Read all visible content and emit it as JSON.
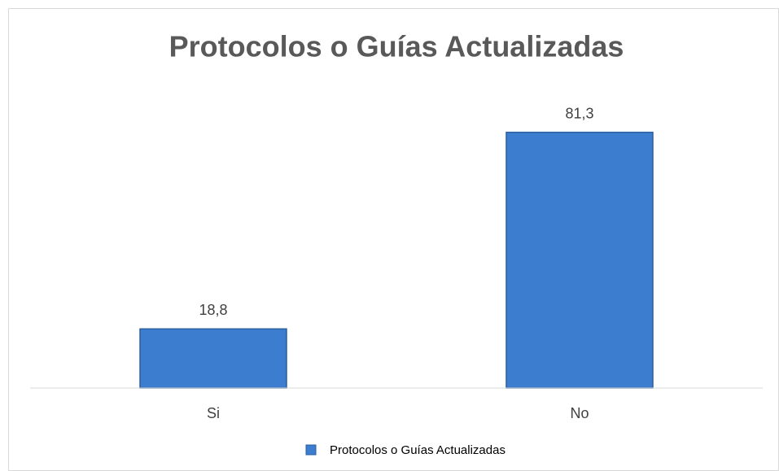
{
  "chart_data": {
    "type": "bar",
    "title": "Protocolos o Guías Actualizadas",
    "categories": [
      "Si",
      "No"
    ],
    "series": [
      {
        "name": "Protocolos o Guías Actualizadas",
        "color": "#3c7dd0",
        "values": [
          18.8,
          81.3
        ],
        "value_labels": [
          "18,8",
          "81,3"
        ]
      }
    ],
    "ylim": [
      0,
      90
    ],
    "legend": "bottom"
  }
}
